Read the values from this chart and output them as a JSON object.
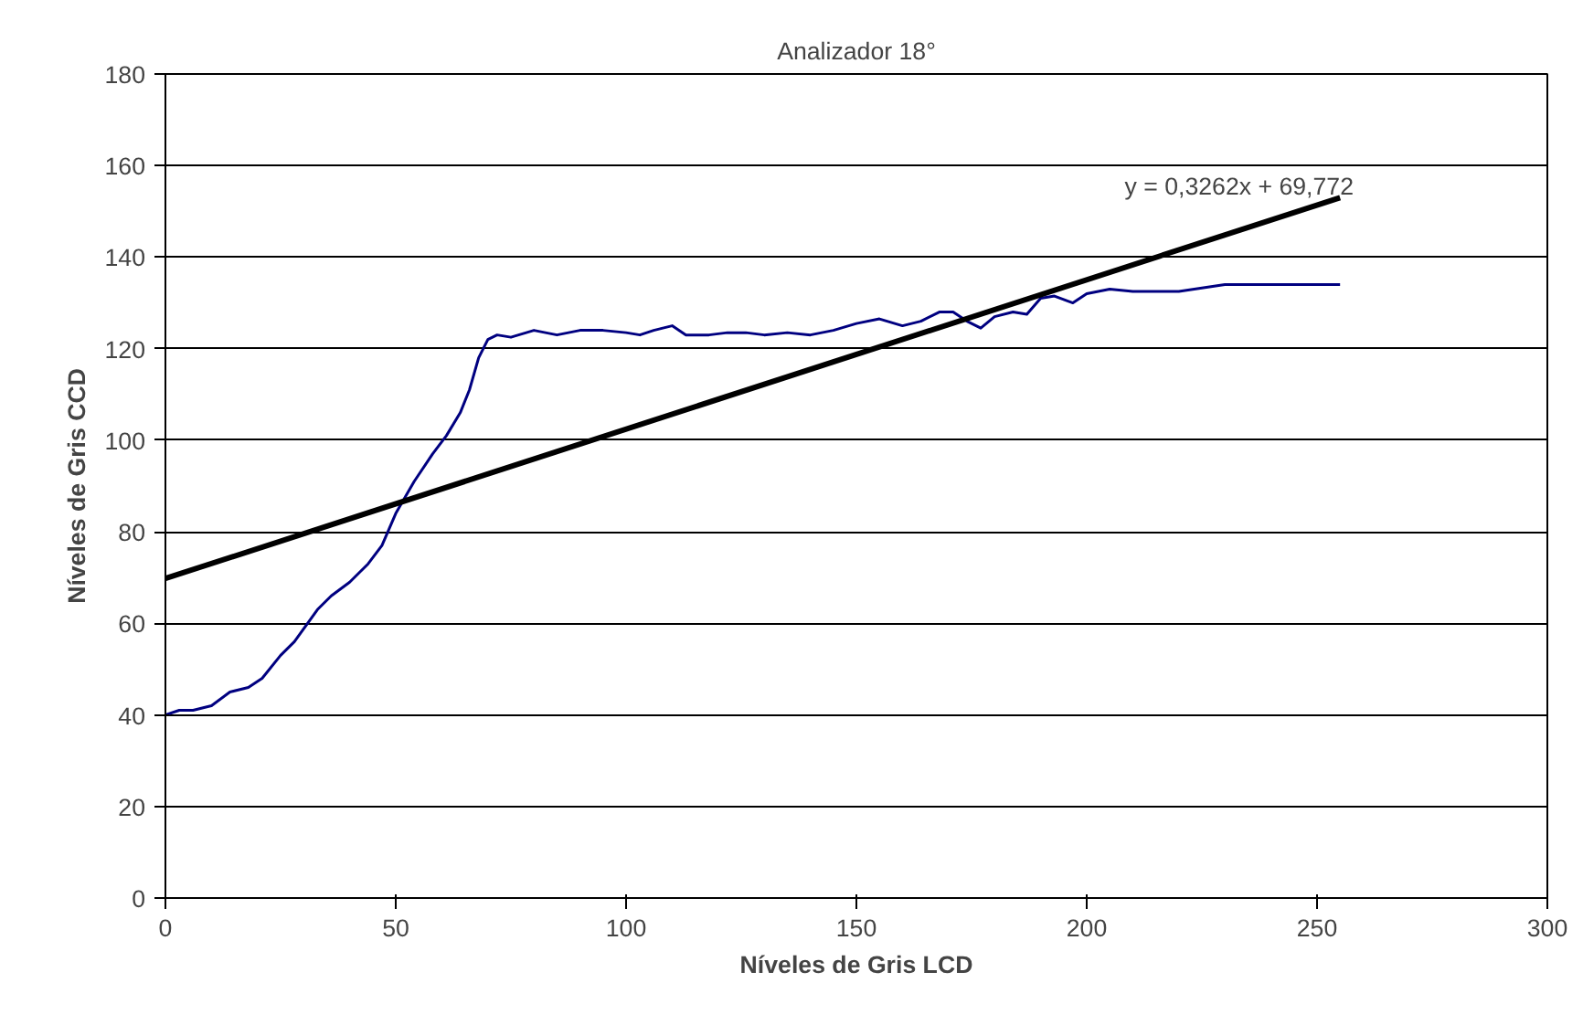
{
  "chart_data": {
    "type": "line",
    "title": "Analizador 18°",
    "xlabel": "Níveles de Gris LCD",
    "ylabel": "Níveles de Gris CCD",
    "series": [
      {
        "color": "#000080",
        "x": [
          0,
          3,
          6,
          10,
          14,
          18,
          21,
          25,
          28,
          33,
          36,
          40,
          44,
          47,
          50,
          54,
          58,
          61,
          64,
          66,
          68,
          70,
          72,
          75,
          80,
          85,
          90,
          95,
          100,
          103,
          106,
          110,
          113,
          118,
          122,
          126,
          130,
          135,
          140,
          145,
          150,
          155,
          160,
          164,
          168,
          171,
          174,
          177,
          180,
          184,
          187,
          190,
          193,
          197,
          200,
          205,
          210,
          220,
          230,
          255
        ],
        "values": [
          40,
          41,
          41,
          42,
          45,
          46,
          48,
          53,
          56,
          63,
          66,
          69,
          73,
          77,
          84,
          91,
          97,
          101,
          106,
          111,
          118,
          122,
          123,
          122.5,
          124,
          123,
          124,
          124,
          123.5,
          123,
          124,
          125,
          123,
          123,
          123.5,
          123.5,
          123,
          123.5,
          123,
          124,
          125.5,
          126.5,
          125,
          126,
          128,
          128,
          126,
          124.5,
          127,
          128,
          127.5,
          131,
          131.5,
          130,
          132,
          133,
          132.5,
          132.5,
          134,
          134
        ]
      },
      {
        "color": "#000000",
        "x": [
          0,
          255
        ],
        "values": [
          69.8,
          153
        ]
      }
    ],
    "annotations": [
      "y = 0,3262x + 69,772"
    ],
    "xlim": [
      0,
      300
    ],
    "xticks": [
      0,
      50,
      100,
      150,
      200,
      250,
      300
    ],
    "ylim": [
      0,
      180
    ],
    "yticks": [
      0,
      20,
      40,
      60,
      80,
      100,
      120,
      140,
      160,
      180
    ],
    "grid": "y",
    "marker": "none",
    "line_style": "solid"
  }
}
